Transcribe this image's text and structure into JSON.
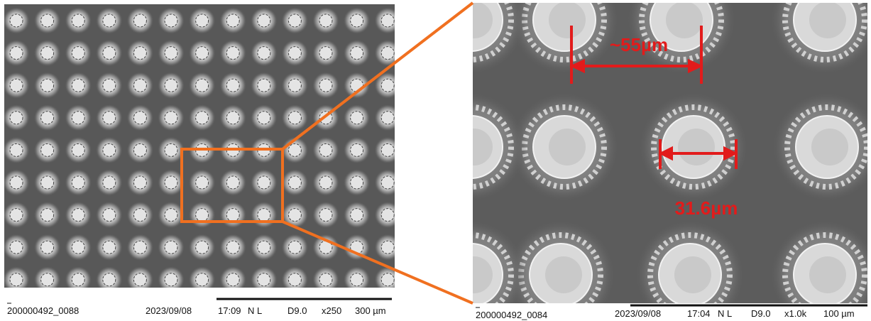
{
  "left_panel": {
    "footer": {
      "image_id": "200000492_0088",
      "date": "2023/09/08",
      "time": "17:09",
      "mode": "N L",
      "detector": "D9.0",
      "magnification": "x250",
      "scale": "300 µm"
    }
  },
  "right_panel": {
    "footer": {
      "image_id": "200000492_0084",
      "date": "2023/09/08",
      "time": "17:04",
      "mode": "N L",
      "detector": "D9.0",
      "magnification": "x1.0k",
      "scale": "100 µm"
    },
    "annotations": {
      "pitch": "~55µm",
      "diameter": "31.6µm"
    }
  }
}
